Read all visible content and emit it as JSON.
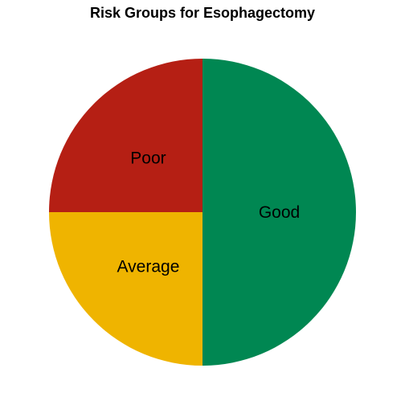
{
  "chart_data": {
    "type": "pie",
    "title": "Risk Groups for Esophagectomy",
    "slices": [
      {
        "label": "Good",
        "value": 50,
        "color": "#008752"
      },
      {
        "label": "Average",
        "value": 25,
        "color": "#EFB400"
      },
      {
        "label": "Poor",
        "value": 25,
        "color": "#B51F14"
      }
    ],
    "start": "top",
    "direction": "clockwise",
    "legend": "none"
  }
}
